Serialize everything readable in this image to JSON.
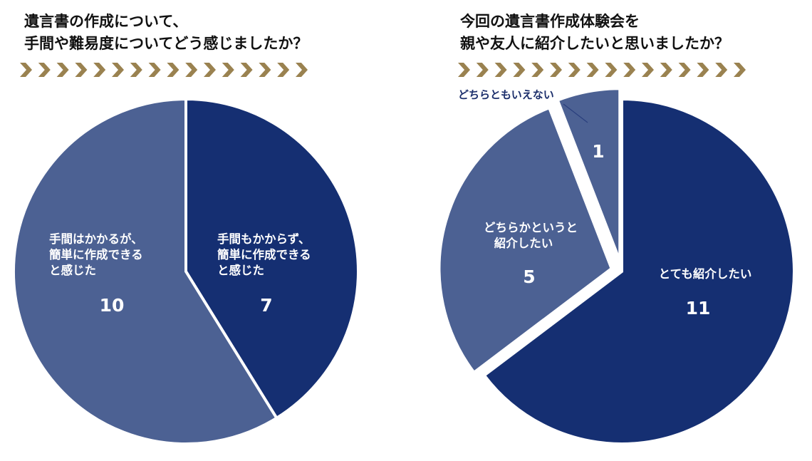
{
  "colors": {
    "dark_navy": "#152f72",
    "slate_blue": "#4c6193",
    "chevron_gold": "#9a8250",
    "separator": "#ffffff"
  },
  "chevron_count": 16,
  "chart_data": [
    {
      "type": "pie",
      "title": [
        "遺言書の作成について、",
        "手間や難易度についてどう感じましたか？"
      ],
      "categories": [
        "手間もかからず、簡単に作成できると感じた",
        "手間はかかるが、簡単に作成できると感じた"
      ],
      "values": [
        7,
        10
      ],
      "labels": [
        {
          "lines": [
            "手間もかからず、",
            "簡単に作成できる",
            "と感じた"
          ],
          "value": "7"
        },
        {
          "lines": [
            "手間はかかるが、",
            "簡単に作成できる",
            "と感じた"
          ],
          "value": "10"
        }
      ],
      "colors": [
        "#152f72",
        "#4c6193"
      ],
      "exploded": [
        false,
        false
      ],
      "start": "12 o'clock",
      "direction": "clockwise",
      "legend": "none"
    },
    {
      "type": "pie",
      "title": [
        "今回の遺言書作成体験会を",
        "親や友人に紹介したいと思いましたか？"
      ],
      "categories": [
        "とても紹介したい",
        "どちらかというと紹介したい",
        "どちらともいえない"
      ],
      "values": [
        11,
        5,
        1
      ],
      "labels": [
        {
          "lines": [
            "とても紹介したい"
          ],
          "value": "11"
        },
        {
          "lines": [
            "どちらかというと",
            "紹介したい"
          ],
          "value": "5"
        },
        {
          "lines": [],
          "value": "1",
          "outside_label": "どちらともいえない"
        }
      ],
      "colors": [
        "#152f72",
        "#4c6193",
        "#4c6193"
      ],
      "exploded": [
        false,
        true,
        true
      ],
      "start": "12 o'clock",
      "direction": "clockwise",
      "legend": "none"
    }
  ]
}
